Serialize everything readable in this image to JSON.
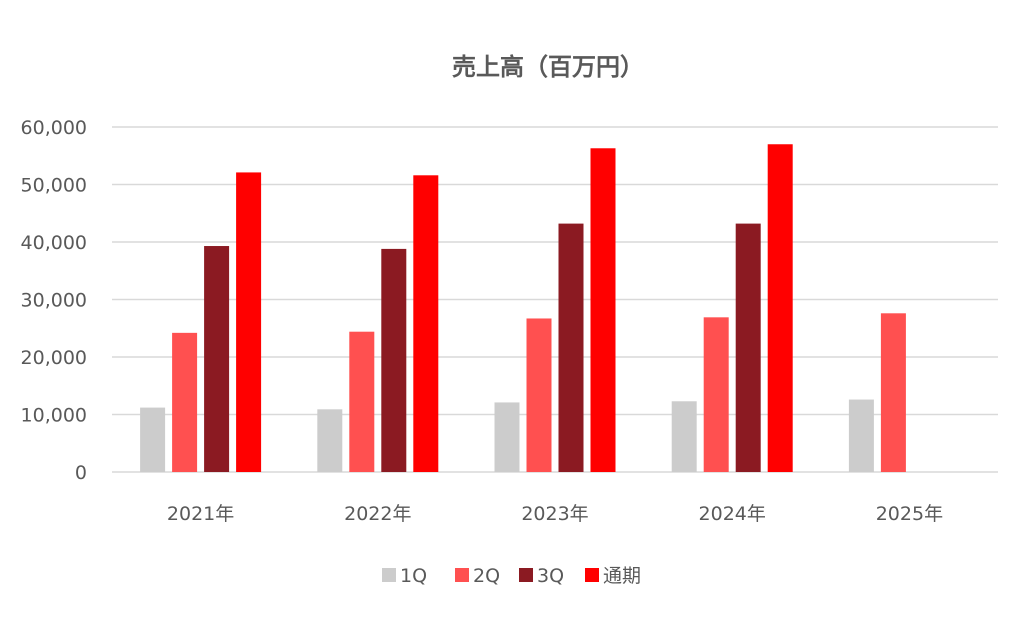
{
  "chart_data": {
    "type": "bar",
    "title": "売上高（百万円）",
    "categories": [
      "2021年",
      "2022年",
      "2023年",
      "2024年",
      "2025年"
    ],
    "series": [
      {
        "name": "1Q",
        "color": "#cccccc",
        "values": [
          11200,
          10900,
          12100,
          12300,
          12600
        ]
      },
      {
        "name": "2Q",
        "color": "#ff5050",
        "values": [
          24200,
          24400,
          26700,
          26900,
          27600
        ]
      },
      {
        "name": "3Q",
        "color": "#8b1a22",
        "values": [
          39300,
          38800,
          43200,
          43200,
          null
        ]
      },
      {
        "name": "通期",
        "color": "#ff0000",
        "values": [
          52100,
          51600,
          56300,
          57000,
          null
        ]
      }
    ],
    "ylim": [
      0,
      60000
    ],
    "yticks": [
      0,
      10000,
      20000,
      30000,
      40000,
      50000,
      60000
    ],
    "ytick_labels": [
      "0",
      "10,000",
      "20,000",
      "30,000",
      "40,000",
      "50,000",
      "60,000"
    ],
    "grid": true,
    "legend_position": "bottom",
    "xlabel": "",
    "ylabel": ""
  }
}
